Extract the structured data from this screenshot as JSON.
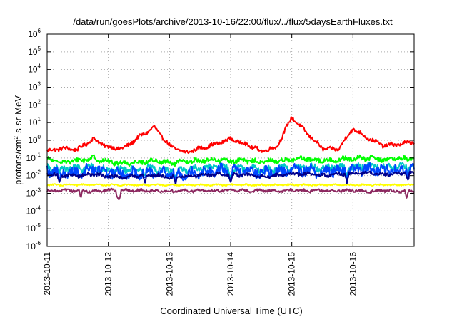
{
  "chart_data": {
    "type": "line",
    "title": "/data/run/goesPlots/archive/2013-10-16/22:00/flux/../flux/5daysEarthFluxes.txt",
    "xlabel": "Coordinated Universal Time (UTC)",
    "ylabel": "protons/cm2-s-sr-MeV",
    "ylabel_parts": {
      "pre": "protons/cm",
      "sup": "2",
      "post": "-s-sr-MeV"
    },
    "yscale": "log",
    "ylim": [
      1e-06,
      1000000.0
    ],
    "yticks": [
      {
        "value": 1e-06,
        "base": "10",
        "exp": "-6"
      },
      {
        "value": 1e-05,
        "base": "10",
        "exp": "-5"
      },
      {
        "value": 0.0001,
        "base": "10",
        "exp": "-4"
      },
      {
        "value": 0.001,
        "base": "10",
        "exp": "-3"
      },
      {
        "value": 0.01,
        "base": "10",
        "exp": "-2"
      },
      {
        "value": 0.1,
        "base": "10",
        "exp": "-1"
      },
      {
        "value": 1,
        "base": "10",
        "exp": "0"
      },
      {
        "value": 10,
        "base": "10",
        "exp": "1"
      },
      {
        "value": 100,
        "base": "10",
        "exp": "2"
      },
      {
        "value": 1000,
        "base": "10",
        "exp": "3"
      },
      {
        "value": 10000,
        "base": "10",
        "exp": "4"
      },
      {
        "value": 100000,
        "base": "10",
        "exp": "5"
      },
      {
        "value": 1000000,
        "base": "10",
        "exp": "6"
      }
    ],
    "xlim": [
      "2013-10-11",
      "2013-10-17"
    ],
    "xticks": [
      "2013-10-11",
      "2013-10-12",
      "2013-10-13",
      "2013-10-14",
      "2013-10-15",
      "2013-10-16"
    ],
    "grid": true,
    "x": [
      0,
      0.25,
      0.5,
      0.75,
      1.0,
      1.25,
      1.5,
      1.75,
      2.0,
      2.25,
      2.5,
      2.75,
      3.0,
      3.25,
      3.5,
      3.75,
      4.0,
      4.25,
      4.5,
      4.75,
      5.0,
      5.25,
      5.5,
      5.75,
      6.0
    ],
    "series": [
      {
        "color": "#ff0000",
        "values": [
          0.25,
          0.35,
          0.3,
          1.2,
          0.4,
          0.35,
          1.5,
          5.5,
          0.5,
          0.2,
          0.35,
          0.6,
          1.2,
          0.6,
          0.25,
          0.4,
          20,
          2.5,
          0.35,
          0.3,
          4.5,
          1.3,
          0.5,
          0.6,
          0.8
        ],
        "noise": 0.1,
        "dips": []
      },
      {
        "color": "#00ff00",
        "values": [
          0.08,
          0.06,
          0.07,
          0.1,
          0.06,
          0.05,
          0.06,
          0.07,
          0.05,
          0.06,
          0.07,
          0.08,
          0.07,
          0.07,
          0.06,
          0.07,
          0.08,
          0.09,
          0.07,
          0.08,
          0.09,
          0.1,
          0.08,
          0.09,
          0.1
        ],
        "noise": 0.13,
        "dips": []
      },
      {
        "color": "#00c8c8",
        "values": [
          0.03,
          0.025,
          0.025,
          0.03,
          0.02,
          0.022,
          0.025,
          0.025,
          0.02,
          0.022,
          0.025,
          0.03,
          0.025,
          0.025,
          0.022,
          0.025,
          0.03,
          0.03,
          0.025,
          0.03,
          0.03,
          0.035,
          0.03,
          0.03,
          0.035
        ],
        "noise": 0.18,
        "dips": [
          0.2,
          1.6,
          2.1,
          3.0,
          4.9,
          5.9
        ]
      },
      {
        "color": "#0046ff",
        "values": [
          0.02,
          0.015,
          0.015,
          0.025,
          0.015,
          0.012,
          0.015,
          0.018,
          0.012,
          0.014,
          0.016,
          0.02,
          0.018,
          0.017,
          0.014,
          0.016,
          0.022,
          0.02,
          0.016,
          0.02,
          0.022,
          0.025,
          0.02,
          0.022,
          0.025
        ],
        "noise": 0.28,
        "dips": [
          0.2,
          1.6,
          2.1,
          3.0,
          4.9,
          5.9
        ]
      },
      {
        "color": "#00008c",
        "values": [
          0.012,
          0.01,
          0.01,
          0.012,
          0.009,
          0.008,
          0.01,
          0.011,
          0.008,
          0.009,
          0.01,
          0.012,
          0.011,
          0.011,
          0.009,
          0.01,
          0.013,
          0.012,
          0.01,
          0.012,
          0.013,
          0.015,
          0.012,
          0.013,
          0.014
        ],
        "noise": 0.09,
        "dips": [
          0.2,
          1.6,
          2.1,
          3.0,
          4.9,
          5.9
        ]
      },
      {
        "color": "#ffff00",
        "values": [
          0.003,
          0.003,
          0.003,
          0.003,
          0.003,
          0.003,
          0.003,
          0.003,
          0.003,
          0.003,
          0.003,
          0.003,
          0.003,
          0.003,
          0.003,
          0.003,
          0.003,
          0.003,
          0.003,
          0.003,
          0.003,
          0.003,
          0.003,
          0.003,
          0.003
        ],
        "noise": 0.04,
        "dips": []
      },
      {
        "color": "#8c2860",
        "values": [
          0.0014,
          0.0014,
          0.0014,
          0.0013,
          0.0015,
          0.0014,
          0.0015,
          0.0014,
          0.0013,
          0.0014,
          0.0014,
          0.0014,
          0.0015,
          0.0014,
          0.0014,
          0.0014,
          0.0015,
          0.0014,
          0.0014,
          0.0014,
          0.0014,
          0.0013,
          0.0014,
          0.0013,
          0.0013
        ],
        "noise": 0.07,
        "dips": [
          0.55,
          1.15,
          1.18,
          5.88
        ]
      }
    ]
  }
}
